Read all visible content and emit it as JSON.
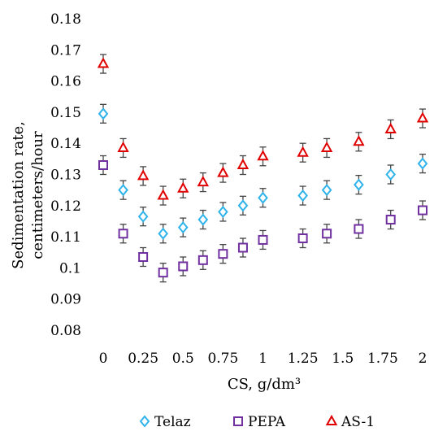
{
  "chart_data": {
    "type": "scatter",
    "xlabel": "CS, g/dm³",
    "ylabel_lines": [
      "Sedimentation rate,",
      "centimeters/hour"
    ],
    "xlim": [
      0,
      2
    ],
    "ylim": [
      0.08,
      0.18
    ],
    "x_ticks": [
      "0",
      "0.25",
      "0.5",
      "0.75",
      "1",
      "1.25",
      "1.5",
      "1.75",
      "2"
    ],
    "y_ticks": [
      "0.08",
      "0.09",
      "0.1",
      "0.11",
      "0.12",
      "0.13",
      "0.14",
      "0.15",
      "0.16",
      "0.17",
      "0.18"
    ],
    "grid": false,
    "error_bars": true,
    "legend_position": "bottom",
    "series": [
      {
        "name": "Telaz",
        "marker": "diamond",
        "color": "#2EB3EA",
        "points": [
          [
            0,
            0.1495
          ],
          [
            0.125,
            0.125
          ],
          [
            0.25,
            0.1165
          ],
          [
            0.375,
            0.111
          ],
          [
            0.5,
            0.113
          ],
          [
            0.625,
            0.1155
          ],
          [
            0.75,
            0.118
          ],
          [
            0.875,
            0.12
          ],
          [
            1.0,
            0.1225
          ],
          [
            1.25,
            0.1232
          ],
          [
            1.4,
            0.125
          ],
          [
            1.6,
            0.1267
          ],
          [
            1.8,
            0.13
          ],
          [
            2.0,
            0.1335
          ]
        ]
      },
      {
        "name": "PEPA",
        "marker": "square",
        "color": "#7030A0",
        "points": [
          [
            0,
            0.133
          ],
          [
            0.125,
            0.111
          ],
          [
            0.25,
            0.1035
          ],
          [
            0.375,
            0.0985
          ],
          [
            0.5,
            0.1005
          ],
          [
            0.625,
            0.1025
          ],
          [
            0.75,
            0.1045
          ],
          [
            0.875,
            0.1065
          ],
          [
            1.0,
            0.109
          ],
          [
            1.25,
            0.1095
          ],
          [
            1.4,
            0.111
          ],
          [
            1.6,
            0.1125
          ],
          [
            1.8,
            0.1155
          ],
          [
            2.0,
            0.1185
          ]
        ]
      },
      {
        "name": "AS-1",
        "marker": "triangle",
        "color": "#E00000",
        "points": [
          [
            0,
            0.1655
          ],
          [
            0.125,
            0.1385
          ],
          [
            0.25,
            0.1295
          ],
          [
            0.375,
            0.1232
          ],
          [
            0.5,
            0.1255
          ],
          [
            0.625,
            0.1275
          ],
          [
            0.75,
            0.1305
          ],
          [
            0.875,
            0.133
          ],
          [
            1.0,
            0.1358
          ],
          [
            1.25,
            0.137
          ],
          [
            1.4,
            0.1385
          ],
          [
            1.6,
            0.1405
          ],
          [
            1.8,
            0.1445
          ],
          [
            2.0,
            0.148
          ]
        ]
      }
    ],
    "error_magnitude": 0.003
  }
}
